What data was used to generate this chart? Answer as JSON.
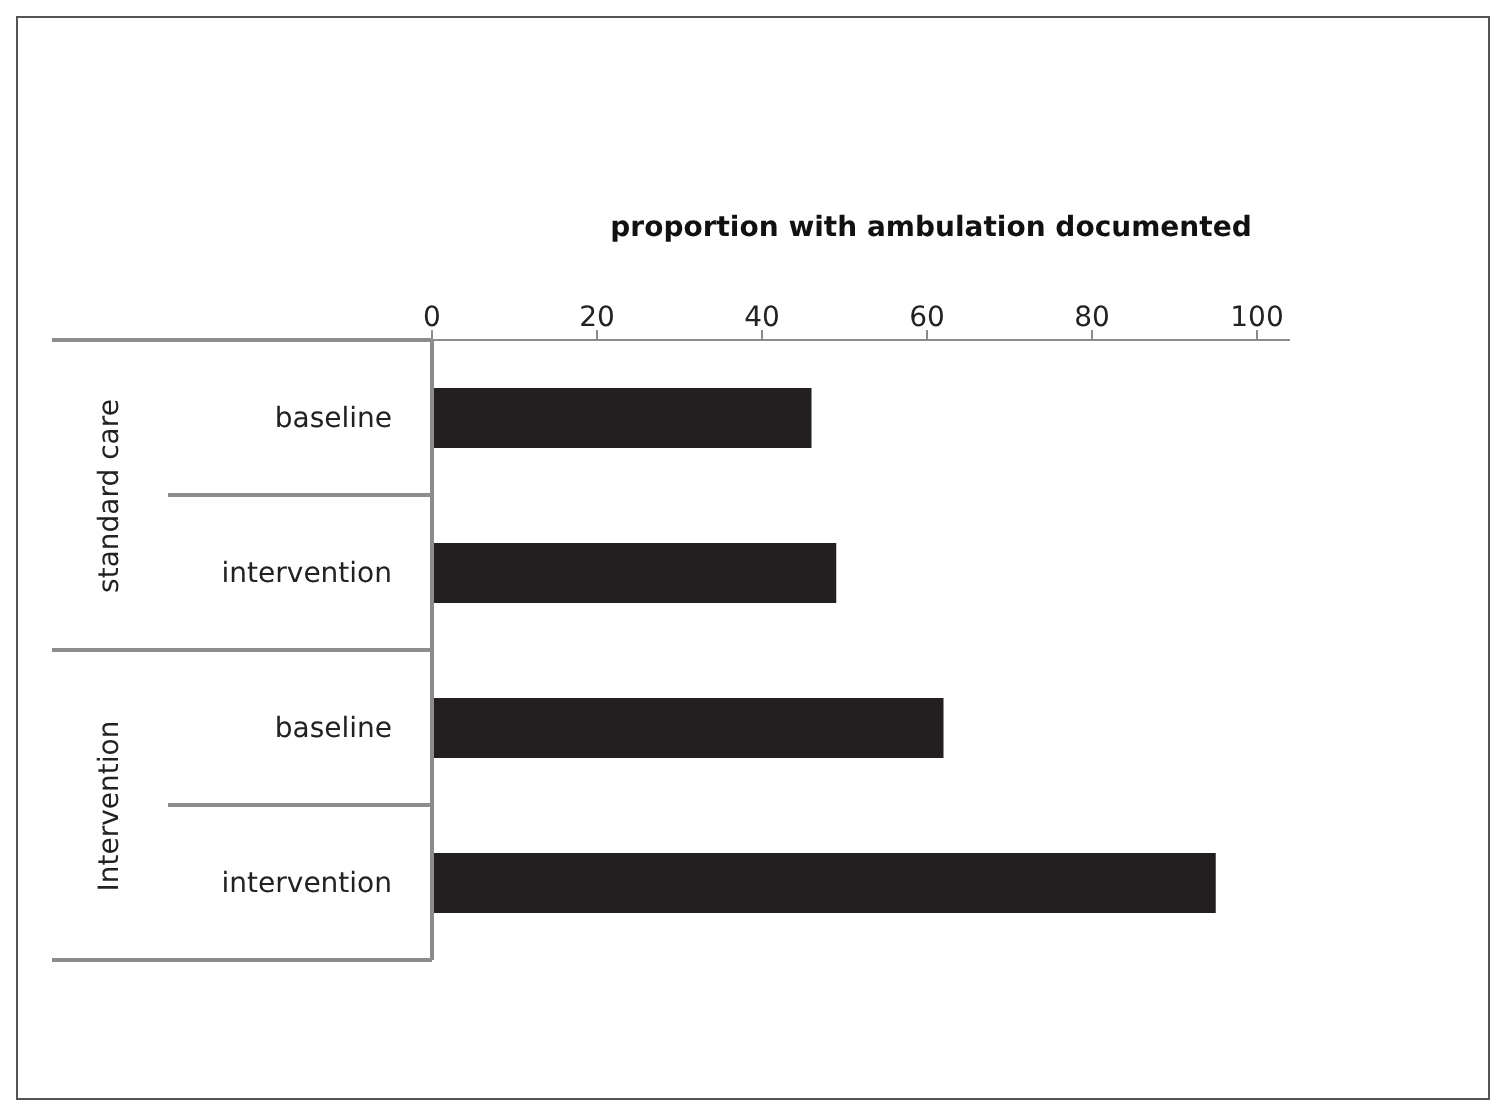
{
  "chart_data": {
    "type": "bar",
    "orientation": "horizontal",
    "xlabel": "proportion with ambulation  documented",
    "categories": [
      "baseline",
      "intervention",
      "baseline",
      "intervention"
    ],
    "values": [
      46,
      49,
      62,
      95
    ],
    "color": "#231f20",
    "xlim": [
      0,
      104
    ],
    "xticks": [
      0,
      20,
      40,
      60,
      80,
      100
    ],
    "annotations": [
      "standard care",
      "Intervention"
    ]
  }
}
